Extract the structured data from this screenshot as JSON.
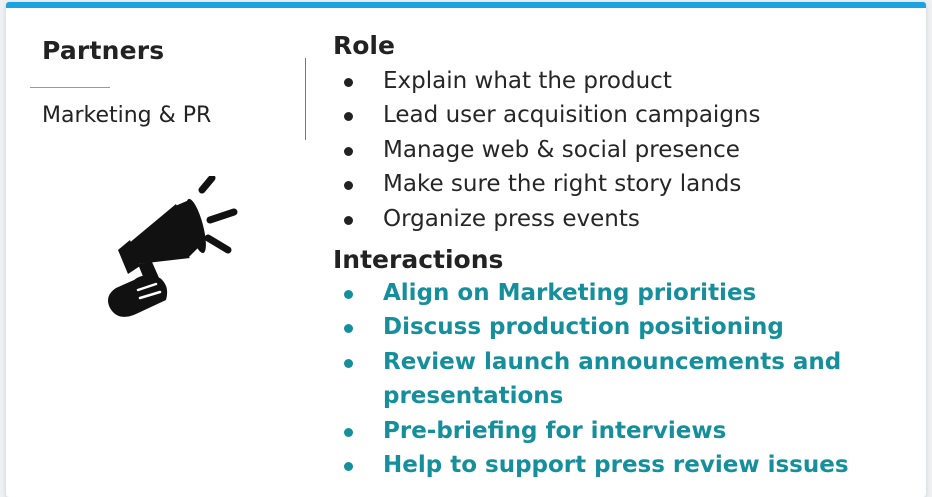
{
  "left_panel": {
    "title": "Partners",
    "partner_name": "Marketing & PR",
    "illustration_icon": "megaphone-icon"
  },
  "role": {
    "title": "Role",
    "items": [
      "Explain what the product",
      "Lead user acquisition campaigns",
      "Manage web & social presence",
      "Make sure the right story lands",
      "Organize press events"
    ]
  },
  "interactions": {
    "title": "Interactions",
    "items": [
      "Align on Marketing priorities",
      "Discuss production positioning",
      "Review launch announcements and presentations",
      "Pre-briefing for interviews",
      "Help to support press review issues"
    ]
  },
  "colors": {
    "accent_top_bar": "#1aa3e0",
    "interaction_text": "#148f9b",
    "body_text": "#262626"
  }
}
